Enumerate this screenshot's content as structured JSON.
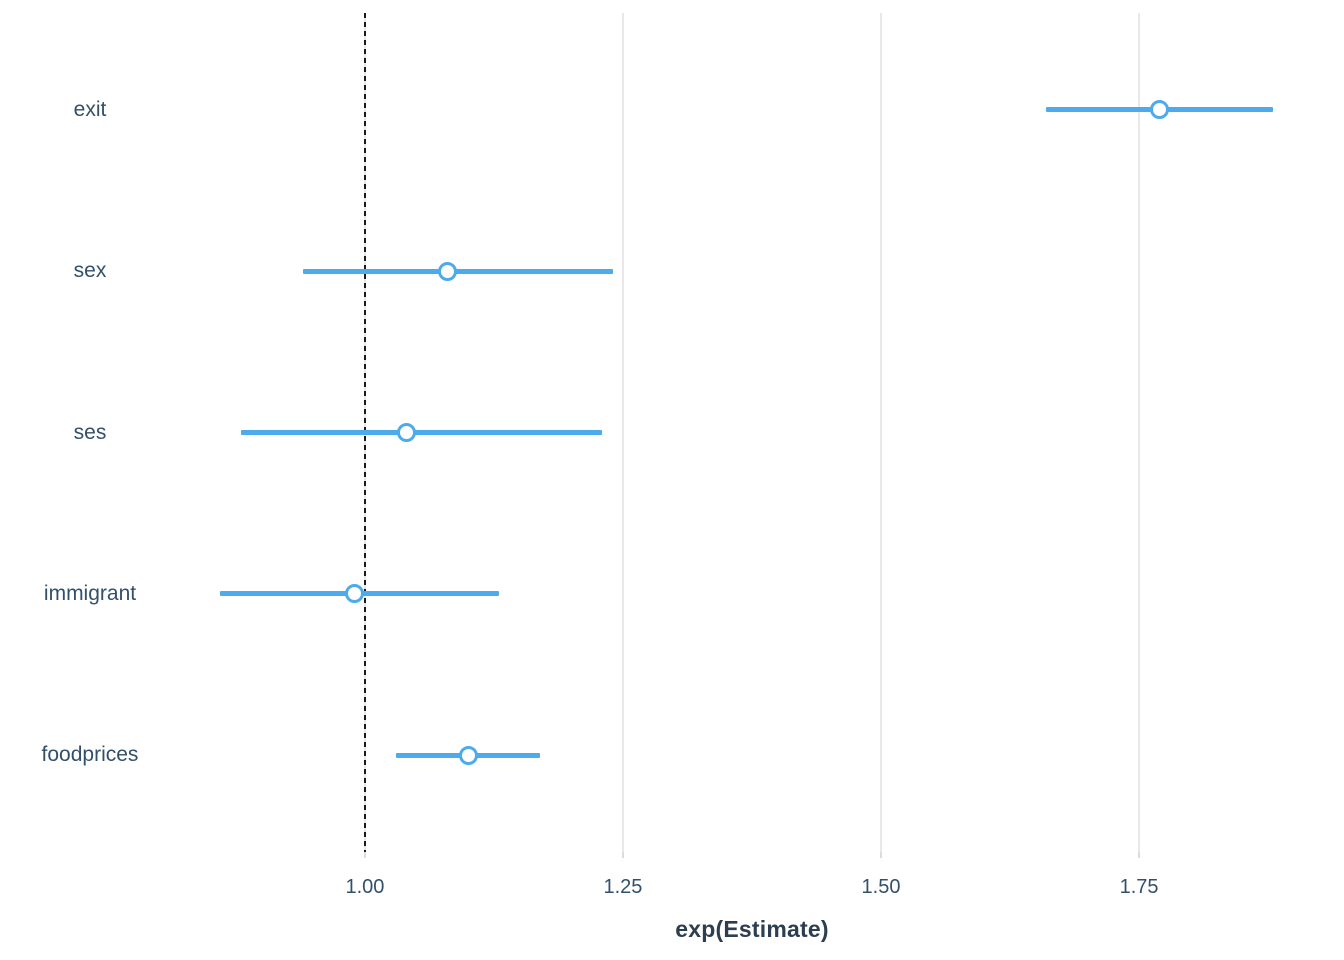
{
  "chart_data": {
    "type": "dot-whisker",
    "title": "",
    "xlabel": "exp(Estimate)",
    "ylabel": "",
    "categories": [
      "exit",
      "sex",
      "ses",
      "immigrant",
      "foodprices"
    ],
    "series": [
      {
        "name": "exp(Estimate)",
        "estimates": [
          1.77,
          1.08,
          1.04,
          0.99,
          1.1
        ],
        "ci_low": [
          1.66,
          0.94,
          0.88,
          0.86,
          1.03
        ],
        "ci_high": [
          1.88,
          1.24,
          1.23,
          1.13,
          1.17
        ]
      }
    ],
    "x_ticks": [
      1.0,
      1.25,
      1.5,
      1.75
    ],
    "x_tick_labels": [
      "1.00",
      "1.25",
      "1.50",
      "1.75"
    ],
    "xlim": [
      0.815,
      1.935
    ],
    "reference_line": 1.0,
    "grid": "major-x-only",
    "legend": "none",
    "colors": {
      "whisker": "#4dabeb",
      "point_ring": "#4dabeb",
      "point_fill": "#ffffff",
      "grid": "#e8e8e8",
      "reference": "#1a1a1a",
      "axis_text": "#33506a",
      "axis_title": "#2d3e50",
      "background": "#ffffff"
    }
  }
}
